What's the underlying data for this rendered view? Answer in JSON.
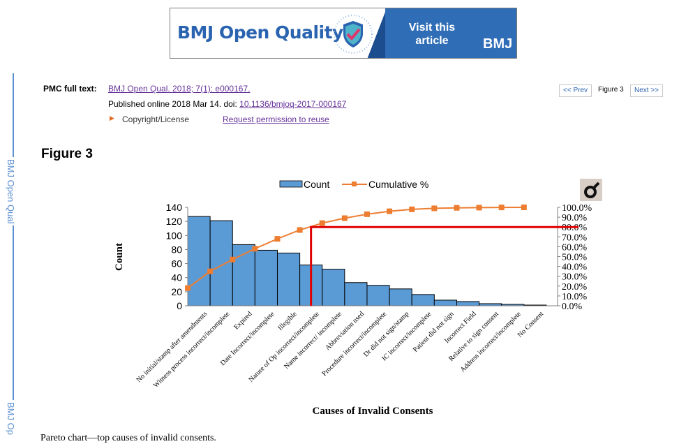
{
  "banner": {
    "journal": "BMJ Open Quality",
    "cta": "Visit this article",
    "brand": "BMJ",
    "colors": {
      "brand_blue": "#2f6db6",
      "text_blue": "#2a63b0"
    }
  },
  "sidebar": {
    "label_top": "BMJ Open Qual",
    "label_bottom": "BMJ Op"
  },
  "citation": {
    "label": "PMC full text:",
    "source_link": "BMJ Open Qual. 2018; 7(1): e000167.",
    "published_prefix": "Published online 2018 Mar 14. doi: ",
    "doi_link": "10.1136/bmjoq-2017-000167",
    "copyright_label": "Copyright/License",
    "permission_link": "Request permission to reuse"
  },
  "nav": {
    "prev": "<< Prev",
    "current": "Figure 3",
    "next": "Next >>"
  },
  "figure": {
    "title": "Figure 3",
    "caption": "Pareto chart—top causes of invalid consents."
  },
  "chart_data": {
    "type": "bar",
    "categories": [
      "No initial/stamp after amendments",
      "Witness process incorrect/incomplete",
      "Expired",
      "Date Incorrect/incomplete",
      "Illegible",
      "Nature of Op incorrect/incomplete",
      "Name incorrect/ incomplete",
      "Abbreviation used",
      "Procedure incorrect/incomplete",
      "Dr did not sign/stamp",
      "IC incorrect/incomplete",
      "Patient did not sign",
      "Incorrect Field",
      "Relative to sign consent",
      "Address incorrect/incomplete",
      "No Consent"
    ],
    "series": [
      {
        "name": "Count",
        "type": "bar",
        "values": [
          127,
          121,
          87,
          79,
          75,
          58,
          52,
          33,
          29,
          24,
          16,
          8,
          6,
          3,
          2,
          1
        ],
        "color": "#5b9bd5"
      },
      {
        "name": "Cumulative %",
        "type": "line",
        "values": [
          18.0,
          35.0,
          47.0,
          58.0,
          68.0,
          77.0,
          84.0,
          89.0,
          93.0,
          96.0,
          98.0,
          99.0,
          99.5,
          99.7,
          99.9,
          100.0
        ],
        "color": "#ed7d31"
      }
    ],
    "xlabel": "Causes of Invalid Consents",
    "ylabel": "Count",
    "ylim": [
      0,
      140
    ],
    "yticks": [
      "0",
      "20",
      "40",
      "60",
      "80",
      "100",
      "120",
      "140"
    ],
    "y2lim": [
      0,
      100
    ],
    "y2ticks": [
      "0.0%",
      "10.0%",
      "20.0%",
      "30.0%",
      "40.0%",
      "50.0%",
      "60.0%",
      "70.0%",
      "80.0%",
      "90.0%",
      "100.0%"
    ],
    "threshold_pct": 80,
    "threshold_category_index": 5,
    "threshold_color": "#e00000",
    "legend_position": "top-center",
    "grid": false
  }
}
